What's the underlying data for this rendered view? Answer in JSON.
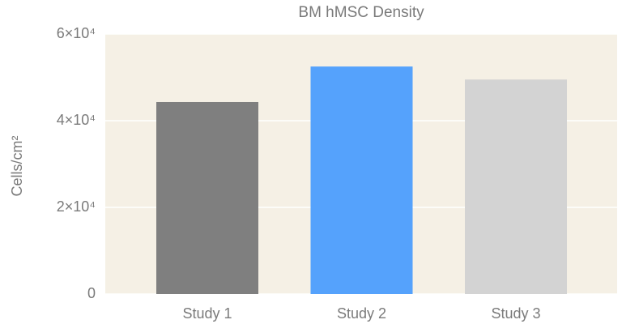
{
  "chart_data": {
    "type": "bar",
    "title": "BM hMSC Density",
    "y_label": "Cells/cm²",
    "categories": [
      "Study 1",
      "Study 2",
      "Study 3"
    ],
    "values": [
      44300,
      52500,
      49500
    ],
    "colors": [
      "#7f7f7f",
      "#55a2fc",
      "#d3d3d3"
    ],
    "ylim": [
      0,
      60000
    ],
    "yticks": [
      0,
      {
        "value": 20000,
        "label": "2×10⁴"
      },
      {
        "value": 40000,
        "label": "4×10⁴"
      },
      {
        "value": 60000,
        "label": "6×10⁴"
      }
    ],
    "grid": true
  }
}
